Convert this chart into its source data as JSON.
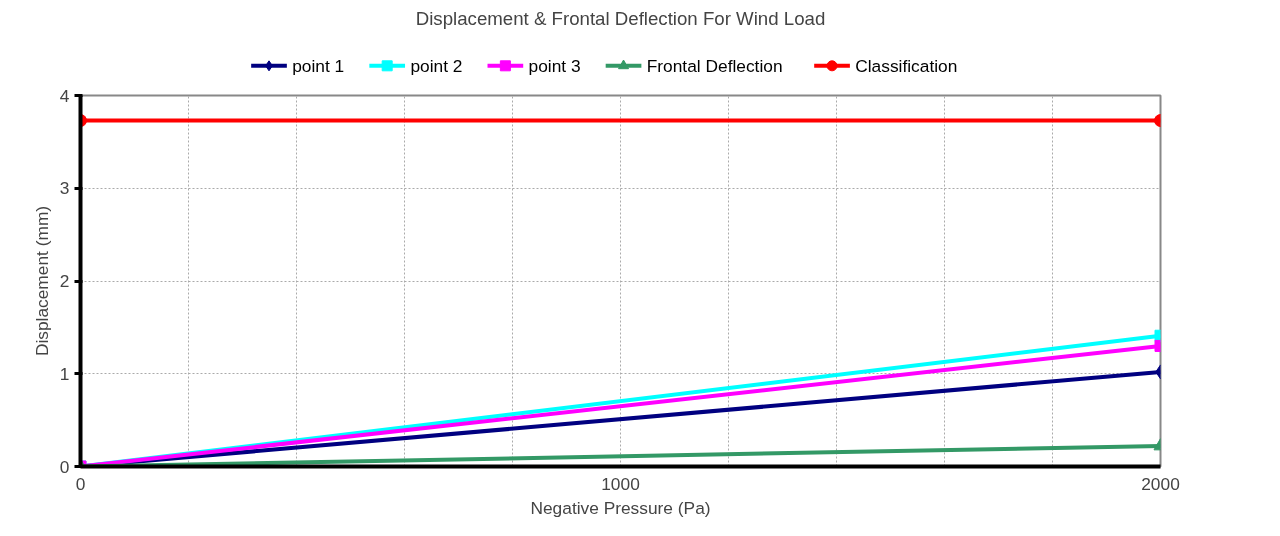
{
  "chart_data": {
    "type": "line",
    "title": "Displacement & Frontal Deflection For Wind Load",
    "xlabel": "Negative Pressure (Pa)",
    "ylabel": "Displacement (mm)",
    "x": [
      0,
      2000
    ],
    "series": [
      {
        "name": "point 1",
        "color": "#000080",
        "marker": "diamond",
        "values": [
          0,
          1.02
        ]
      },
      {
        "name": "point 2",
        "color": "#00ffff",
        "marker": "square",
        "values": [
          0,
          1.41
        ]
      },
      {
        "name": "point 3",
        "color": "#ff00ff",
        "marker": "square",
        "values": [
          0,
          1.3
        ]
      },
      {
        "name": "Frontal Deflection",
        "color": "#339966",
        "marker": "triangle",
        "values": [
          0,
          0.22
        ]
      },
      {
        "name": "Classification",
        "color": "#ff0000",
        "marker": "circle",
        "values": [
          3.73,
          3.73
        ]
      }
    ],
    "xlim": [
      0,
      2000
    ],
    "ylim": [
      0,
      4
    ],
    "xticks": [
      0,
      {
        "value": 200,
        "label": null
      },
      {
        "value": 400,
        "label": null
      },
      {
        "value": 600,
        "label": null
      },
      {
        "value": 800,
        "label": null
      },
      1000,
      {
        "value": 1200,
        "label": null
      },
      {
        "value": 1400,
        "label": null
      },
      {
        "value": 1600,
        "label": null
      },
      {
        "value": 1800,
        "label": null
      },
      2000
    ],
    "yticks": [
      0,
      1,
      2,
      3,
      4
    ],
    "grid": true,
    "legend": "top"
  }
}
